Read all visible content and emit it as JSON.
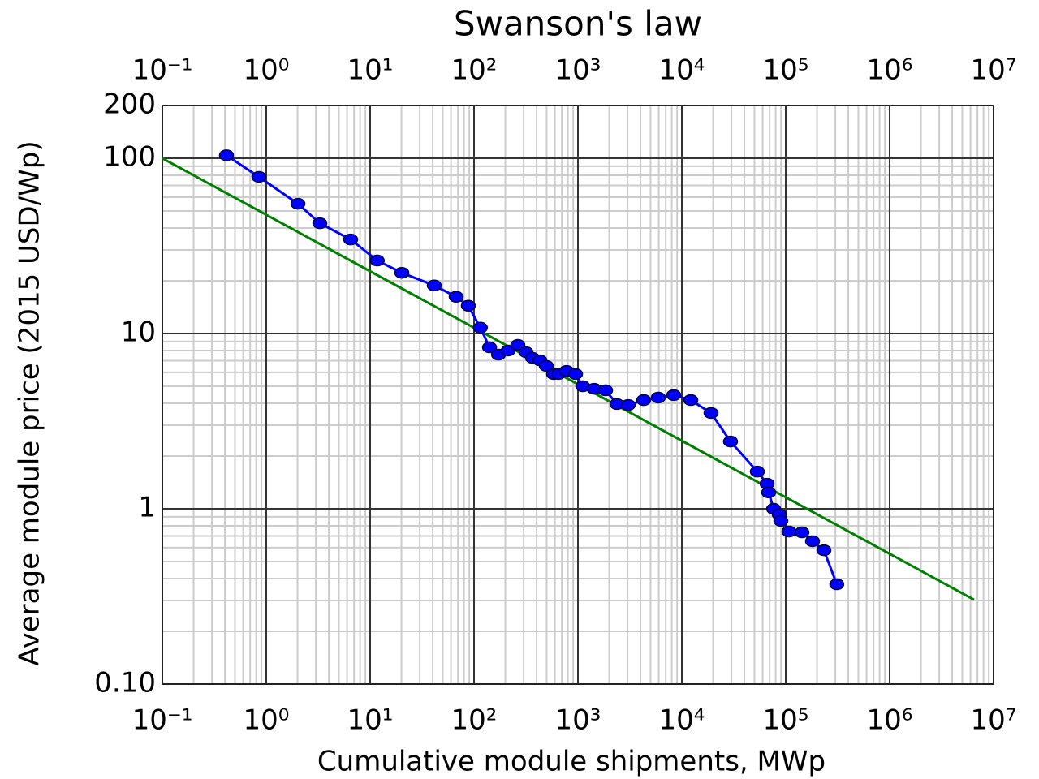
{
  "chart_data": {
    "type": "line",
    "title": "Swanson's law",
    "xlabel": "Cumulative module shipments, MWp",
    "ylabel": "Average module price (2015 USD/Wp)",
    "xscale": "log",
    "yscale": "log",
    "grid": true,
    "xlim": [
      0.1,
      10000000
    ],
    "ylim": [
      0.1,
      200
    ],
    "xticks": [
      {
        "value": 0.1,
        "label": "10⁻¹"
      },
      {
        "value": 1,
        "label": "10⁰"
      },
      {
        "value": 10,
        "label": "10¹"
      },
      {
        "value": 100,
        "label": "10²"
      },
      {
        "value": 1000,
        "label": "10³"
      },
      {
        "value": 10000,
        "label": "10⁴"
      },
      {
        "value": 100000,
        "label": "10⁵"
      },
      {
        "value": 1000000,
        "label": "10⁶"
      },
      {
        "value": 10000000,
        "label": "10⁷"
      }
    ],
    "yticks": [
      {
        "value": 0.1,
        "label": "0.10"
      },
      1,
      10,
      100,
      200
    ],
    "series": [
      {
        "color": "#0000ff",
        "marker": true,
        "x": [
          0.414,
          0.85,
          2.02,
          3.28,
          6.49,
          11.7,
          20.2,
          41.4,
          67.3,
          88.1,
          115,
          141,
          172,
          213,
          264,
          316,
          365,
          430,
          496,
          583,
          649,
          777,
          948,
          1114,
          1432,
          1845,
          2371,
          3048,
          4295,
          5934,
          8356,
          12190,
          19100,
          29400,
          53300,
          66100,
          68500,
          76400,
          86600,
          89800,
          107500,
          143300,
          181000,
          233000,
          310000
        ],
        "values": [
          104,
          78.3,
          55,
          42.6,
          34.4,
          26.1,
          22.2,
          18.8,
          16.2,
          14.4,
          10.8,
          8.34,
          7.58,
          8.0,
          8.61,
          7.83,
          7.26,
          7.03,
          6.53,
          5.87,
          5.87,
          6.12,
          5.87,
          5.0,
          4.84,
          4.74,
          3.96,
          3.91,
          4.17,
          4.31,
          4.45,
          4.17,
          3.52,
          2.42,
          1.63,
          1.39,
          1.24,
          1.0,
          0.928,
          0.853,
          0.742,
          0.734,
          0.653,
          0.58,
          0.371
        ]
      },
      {
        "color": "#008000",
        "marker": false,
        "x": [
          0.1,
          6490000
        ],
        "values": [
          100,
          0.303
        ]
      }
    ]
  }
}
